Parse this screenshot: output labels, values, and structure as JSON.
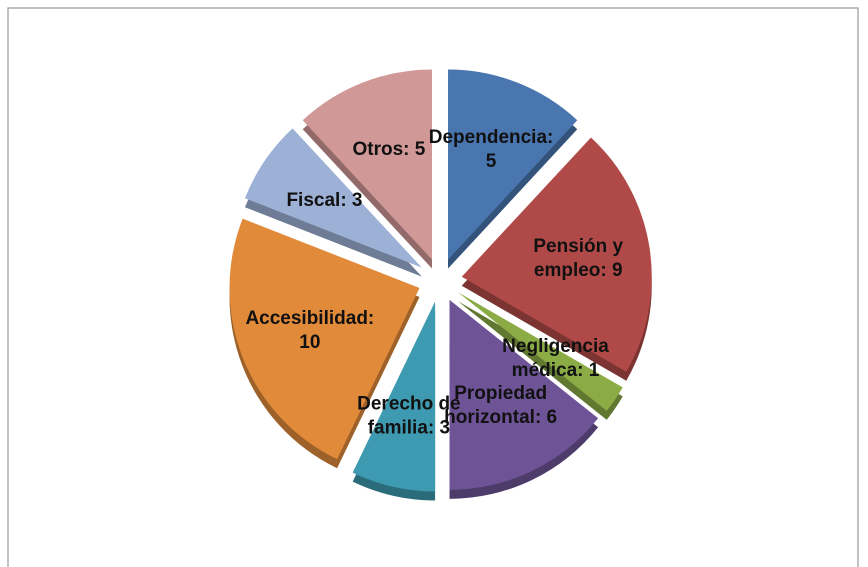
{
  "chart_data": {
    "type": "pie",
    "values": [
      5,
      9,
      1,
      6,
      3,
      10,
      3,
      5
    ],
    "value_labels": [
      "Dependencia:\n5",
      "Pensión y\nempleo: 9",
      "Negligencia\nmédica: 1",
      "Propiedad\nhorizontal: 6",
      "Derecho de\nfamilia: 3",
      "Accesibilidad:\n10",
      "Fiscal: 3",
      "Otros: 5"
    ],
    "colors": [
      "#4a76b0",
      "#b04a48",
      "#8bab45",
      "#6e5496",
      "#3e9ab0",
      "#e08a3a",
      "#9db1d6",
      "#d19898"
    ],
    "exploded": true
  }
}
